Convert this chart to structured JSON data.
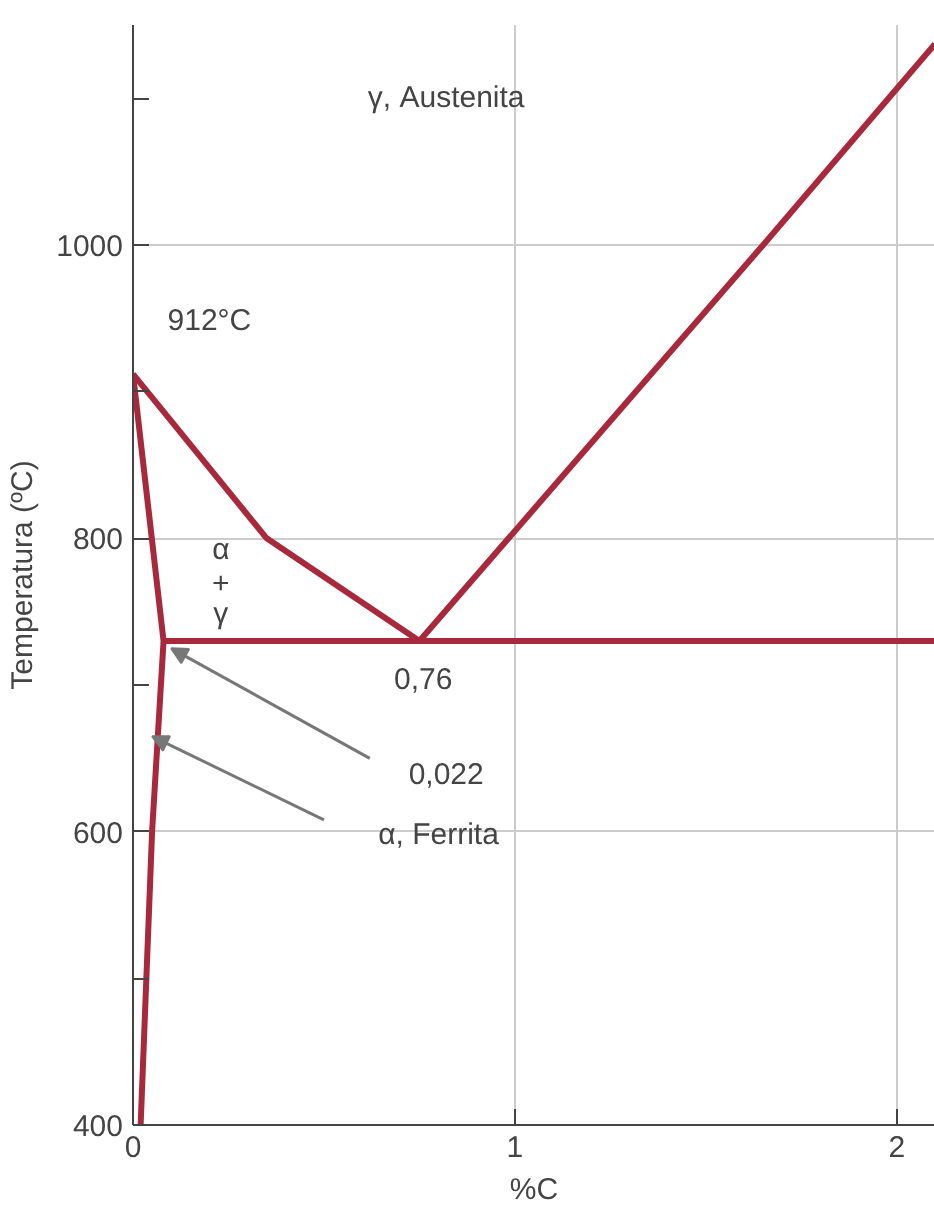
{
  "chart_data": {
    "type": "line",
    "xlabel": "%C",
    "ylabel": "Temperatura (ºC)",
    "xlim": [
      0,
      2.1
    ],
    "ylim": [
      400,
      1150
    ],
    "xticks": [
      0,
      1,
      2
    ],
    "yticks": [
      400,
      {
        "value": 500,
        "label": null
      },
      600,
      {
        "value": 700,
        "label": null
      },
      800,
      {
        "value": 900,
        "label": null
      },
      1000,
      {
        "value": 1100,
        "label": null
      }
    ],
    "grid": true,
    "marker": "none",
    "line_style": "solid",
    "series": [
      {
        "color": "#a8283c",
        "x": [
          0,
          0.08,
          0.05,
          0.02
        ],
        "values": [
          912,
          730,
          600,
          400
        ]
      },
      {
        "color": "#a8283c",
        "x": [
          0,
          0.35,
          0.75
        ],
        "values": [
          912,
          800,
          730
        ]
      },
      {
        "color": "#a8283c",
        "x": [
          0.08,
          2.1
        ],
        "values": [
          730,
          730
        ]
      },
      {
        "color": "#a8283c",
        "x": [
          0.75,
          1.65,
          2.1
        ],
        "values": [
          730,
          1000,
          1137
        ]
      }
    ],
    "annotations": [
      "γ, Austenita",
      {
        "text": "912°C",
        "x": 0,
        "y": 912
      },
      "α\n+\nγ",
      {
        "text": "0,76",
        "x": 0.75,
        "y": 730
      },
      {
        "text": "0,022",
        "x": 0.08,
        "y": 730
      },
      "α, Ferrita"
    ]
  }
}
